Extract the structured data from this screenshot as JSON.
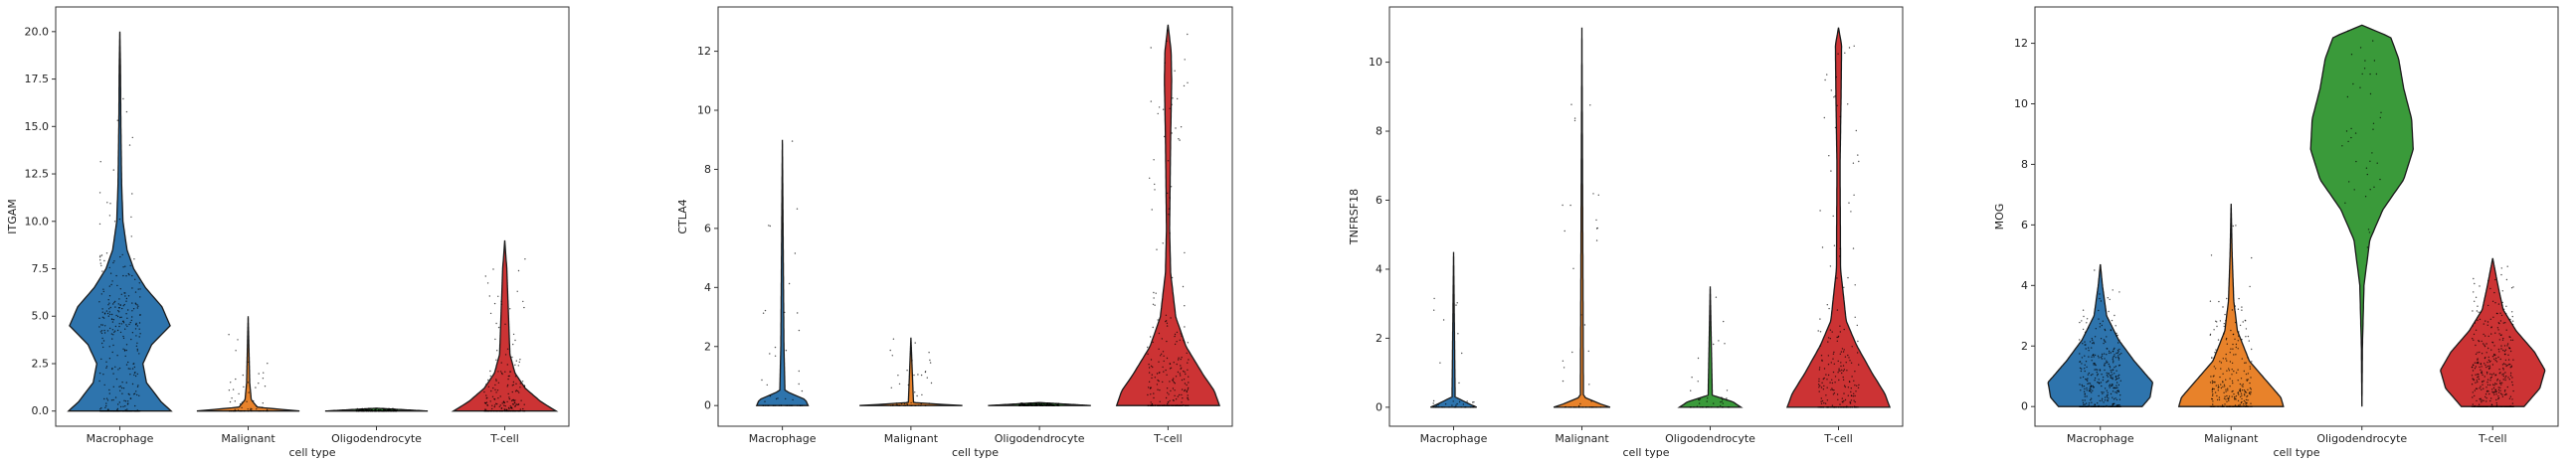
{
  "colors": {
    "Macrophage": "#2e74ad",
    "Malignant": "#e8822a",
    "Oligodendrocyte": "#3a9a3a",
    "T-cell": "#cc3334",
    "axis": "#333333",
    "points": "#000000"
  },
  "chart_data": [
    {
      "type": "violin",
      "title": "",
      "xlabel": "cell type",
      "ylabel": "ITGAM",
      "categories": [
        "Macrophage",
        "Malignant",
        "Oligodendrocyte",
        "T-cell"
      ],
      "ylim": [
        -0.8,
        21.3
      ],
      "yticks": [
        0.0,
        2.5,
        5.0,
        7.5,
        10.0,
        12.5,
        15.0,
        17.5,
        20.0
      ],
      "ytick_labels": [
        "0.0",
        "2.5",
        "5.0",
        "7.5",
        "10.0",
        "12.5",
        "15.0",
        "17.5",
        "20.0"
      ],
      "violins": [
        {
          "category": "Macrophage",
          "max": 20.0,
          "profile": [
            [
              0,
              1.0
            ],
            [
              0.5,
              0.8
            ],
            [
              1.5,
              0.52
            ],
            [
              2.5,
              0.45
            ],
            [
              3.5,
              0.62
            ],
            [
              4.5,
              0.98
            ],
            [
              5.5,
              0.82
            ],
            [
              6.5,
              0.5
            ],
            [
              7.5,
              0.27
            ],
            [
              8.5,
              0.14
            ],
            [
              10,
              0.06
            ],
            [
              12,
              0.035
            ],
            [
              15,
              0.02
            ],
            [
              18,
              0.012
            ],
            [
              20,
              0
            ]
          ]
        },
        {
          "category": "Malignant",
          "max": 5.0,
          "profile": [
            [
              0,
              1.0
            ],
            [
              0.2,
              0.18
            ],
            [
              0.6,
              0.06
            ],
            [
              1.5,
              0.03
            ],
            [
              5.0,
              0
            ]
          ]
        },
        {
          "category": "Oligodendrocyte",
          "max": 0.15,
          "profile": [
            [
              0,
              1.0
            ],
            [
              0.15,
              0
            ]
          ]
        },
        {
          "category": "T-cell",
          "max": 9.0,
          "profile": [
            [
              0,
              1.0
            ],
            [
              0.5,
              0.7
            ],
            [
              1.2,
              0.4
            ],
            [
              2,
              0.2
            ],
            [
              3,
              0.1
            ],
            [
              4.5,
              0.08
            ],
            [
              6,
              0.06
            ],
            [
              7.5,
              0.04
            ],
            [
              9.0,
              0
            ]
          ]
        }
      ]
    },
    {
      "type": "violin",
      "title": "",
      "xlabel": "cell type",
      "ylabel": "CTLA4",
      "categories": [
        "Macrophage",
        "Malignant",
        "Oligodendrocyte",
        "T-cell"
      ],
      "ylim": [
        -0.7,
        13.5
      ],
      "yticks": [
        0,
        2,
        4,
        6,
        8,
        10,
        12
      ],
      "ytick_labels": [
        "0",
        "2",
        "4",
        "6",
        "8",
        "10",
        "12"
      ],
      "violins": [
        {
          "category": "Macrophage",
          "max": 9.0,
          "profile": [
            [
              0,
              0.5
            ],
            [
              0.2,
              0.45
            ],
            [
              0.5,
              0.05
            ],
            [
              2,
              0.03
            ],
            [
              9.0,
              0
            ]
          ]
        },
        {
          "category": "Malignant",
          "max": 2.3,
          "profile": [
            [
              0,
              1.0
            ],
            [
              0.1,
              0.05
            ],
            [
              2.3,
              0
            ]
          ]
        },
        {
          "category": "Oligodendrocyte",
          "max": 0.1,
          "profile": [
            [
              0,
              1.0
            ],
            [
              0.1,
              0
            ]
          ]
        },
        {
          "category": "T-cell",
          "max": 12.9,
          "profile": [
            [
              0,
              1.0
            ],
            [
              0.5,
              0.9
            ],
            [
              1,
              0.7
            ],
            [
              2,
              0.35
            ],
            [
              3,
              0.15
            ],
            [
              4.5,
              0.05
            ],
            [
              6,
              0.03
            ],
            [
              9,
              0.05
            ],
            [
              11,
              0.07
            ],
            [
              12,
              0.06
            ],
            [
              12.9,
              0
            ]
          ]
        }
      ]
    },
    {
      "type": "violin",
      "title": "",
      "xlabel": "cell type",
      "ylabel": "TNFRSF18",
      "categories": [
        "Macrophage",
        "Malignant",
        "Oligodendrocyte",
        "T-cell"
      ],
      "ylim": [
        -0.55,
        11.6
      ],
      "yticks": [
        0,
        2,
        4,
        6,
        8,
        10
      ],
      "ytick_labels": [
        "0",
        "2",
        "4",
        "6",
        "8",
        "10"
      ],
      "violins": [
        {
          "category": "Macrophage",
          "max": 4.5,
          "profile": [
            [
              0,
              0.45
            ],
            [
              0.1,
              0.3
            ],
            [
              0.3,
              0.03
            ],
            [
              4.5,
              0
            ]
          ]
        },
        {
          "category": "Malignant",
          "max": 11.0,
          "profile": [
            [
              0,
              0.55
            ],
            [
              0.1,
              0.35
            ],
            [
              0.3,
              0.03
            ],
            [
              11,
              0
            ]
          ]
        },
        {
          "category": "Oligodendrocyte",
          "max": 3.5,
          "profile": [
            [
              0,
              0.6
            ],
            [
              0.15,
              0.45
            ],
            [
              0.35,
              0.04
            ],
            [
              3.5,
              0
            ]
          ]
        },
        {
          "category": "T-cell",
          "max": 11.0,
          "profile": [
            [
              0,
              1.0
            ],
            [
              0.4,
              0.9
            ],
            [
              1,
              0.65
            ],
            [
              1.8,
              0.35
            ],
            [
              2.5,
              0.15
            ],
            [
              4,
              0.04
            ],
            [
              7,
              0.03
            ],
            [
              9,
              0.05
            ],
            [
              10.5,
              0.06
            ],
            [
              11,
              0
            ]
          ]
        }
      ]
    },
    {
      "type": "violin",
      "title": "",
      "xlabel": "cell type",
      "ylabel": "MOG",
      "categories": [
        "Macrophage",
        "Malignant",
        "Oligodendrocyte",
        "T-cell"
      ],
      "ylim": [
        -0.65,
        13.2
      ],
      "yticks": [
        0,
        2,
        4,
        6,
        8,
        10,
        12
      ],
      "ytick_labels": [
        "0",
        "2",
        "4",
        "6",
        "8",
        "10",
        "12"
      ],
      "violins": [
        {
          "category": "Macrophage",
          "max": 4.7,
          "profile": [
            [
              0,
              0.8
            ],
            [
              0.3,
              0.95
            ],
            [
              0.8,
              1.0
            ],
            [
              1.5,
              0.65
            ],
            [
              2.2,
              0.35
            ],
            [
              3,
              0.12
            ],
            [
              4,
              0.04
            ],
            [
              4.7,
              0
            ]
          ]
        },
        {
          "category": "Malignant",
          "max": 6.7,
          "profile": [
            [
              0,
              1.0
            ],
            [
              0.3,
              0.95
            ],
            [
              0.8,
              0.7
            ],
            [
              1.5,
              0.35
            ],
            [
              2.5,
              0.12
            ],
            [
              3.5,
              0.05
            ],
            [
              5,
              0.02
            ],
            [
              6.7,
              0
            ]
          ]
        },
        {
          "category": "Oligodendrocyte",
          "max": 12.6,
          "profile": [
            [
              0,
              0
            ],
            [
              2,
              0.01
            ],
            [
              4,
              0.04
            ],
            [
              5.5,
              0.15
            ],
            [
              6.5,
              0.4
            ],
            [
              7.5,
              0.8
            ],
            [
              8.5,
              0.98
            ],
            [
              9.5,
              0.95
            ],
            [
              10.5,
              0.8
            ],
            [
              11.5,
              0.7
            ],
            [
              12.2,
              0.55
            ],
            [
              12.6,
              0
            ]
          ]
        },
        {
          "category": "T-cell",
          "max": 4.9,
          "profile": [
            [
              0,
              0.6
            ],
            [
              0.6,
              0.9
            ],
            [
              1.2,
              1.0
            ],
            [
              1.8,
              0.8
            ],
            [
              2.5,
              0.45
            ],
            [
              3.2,
              0.2
            ],
            [
              4,
              0.1
            ],
            [
              4.9,
              0
            ]
          ]
        }
      ]
    }
  ]
}
